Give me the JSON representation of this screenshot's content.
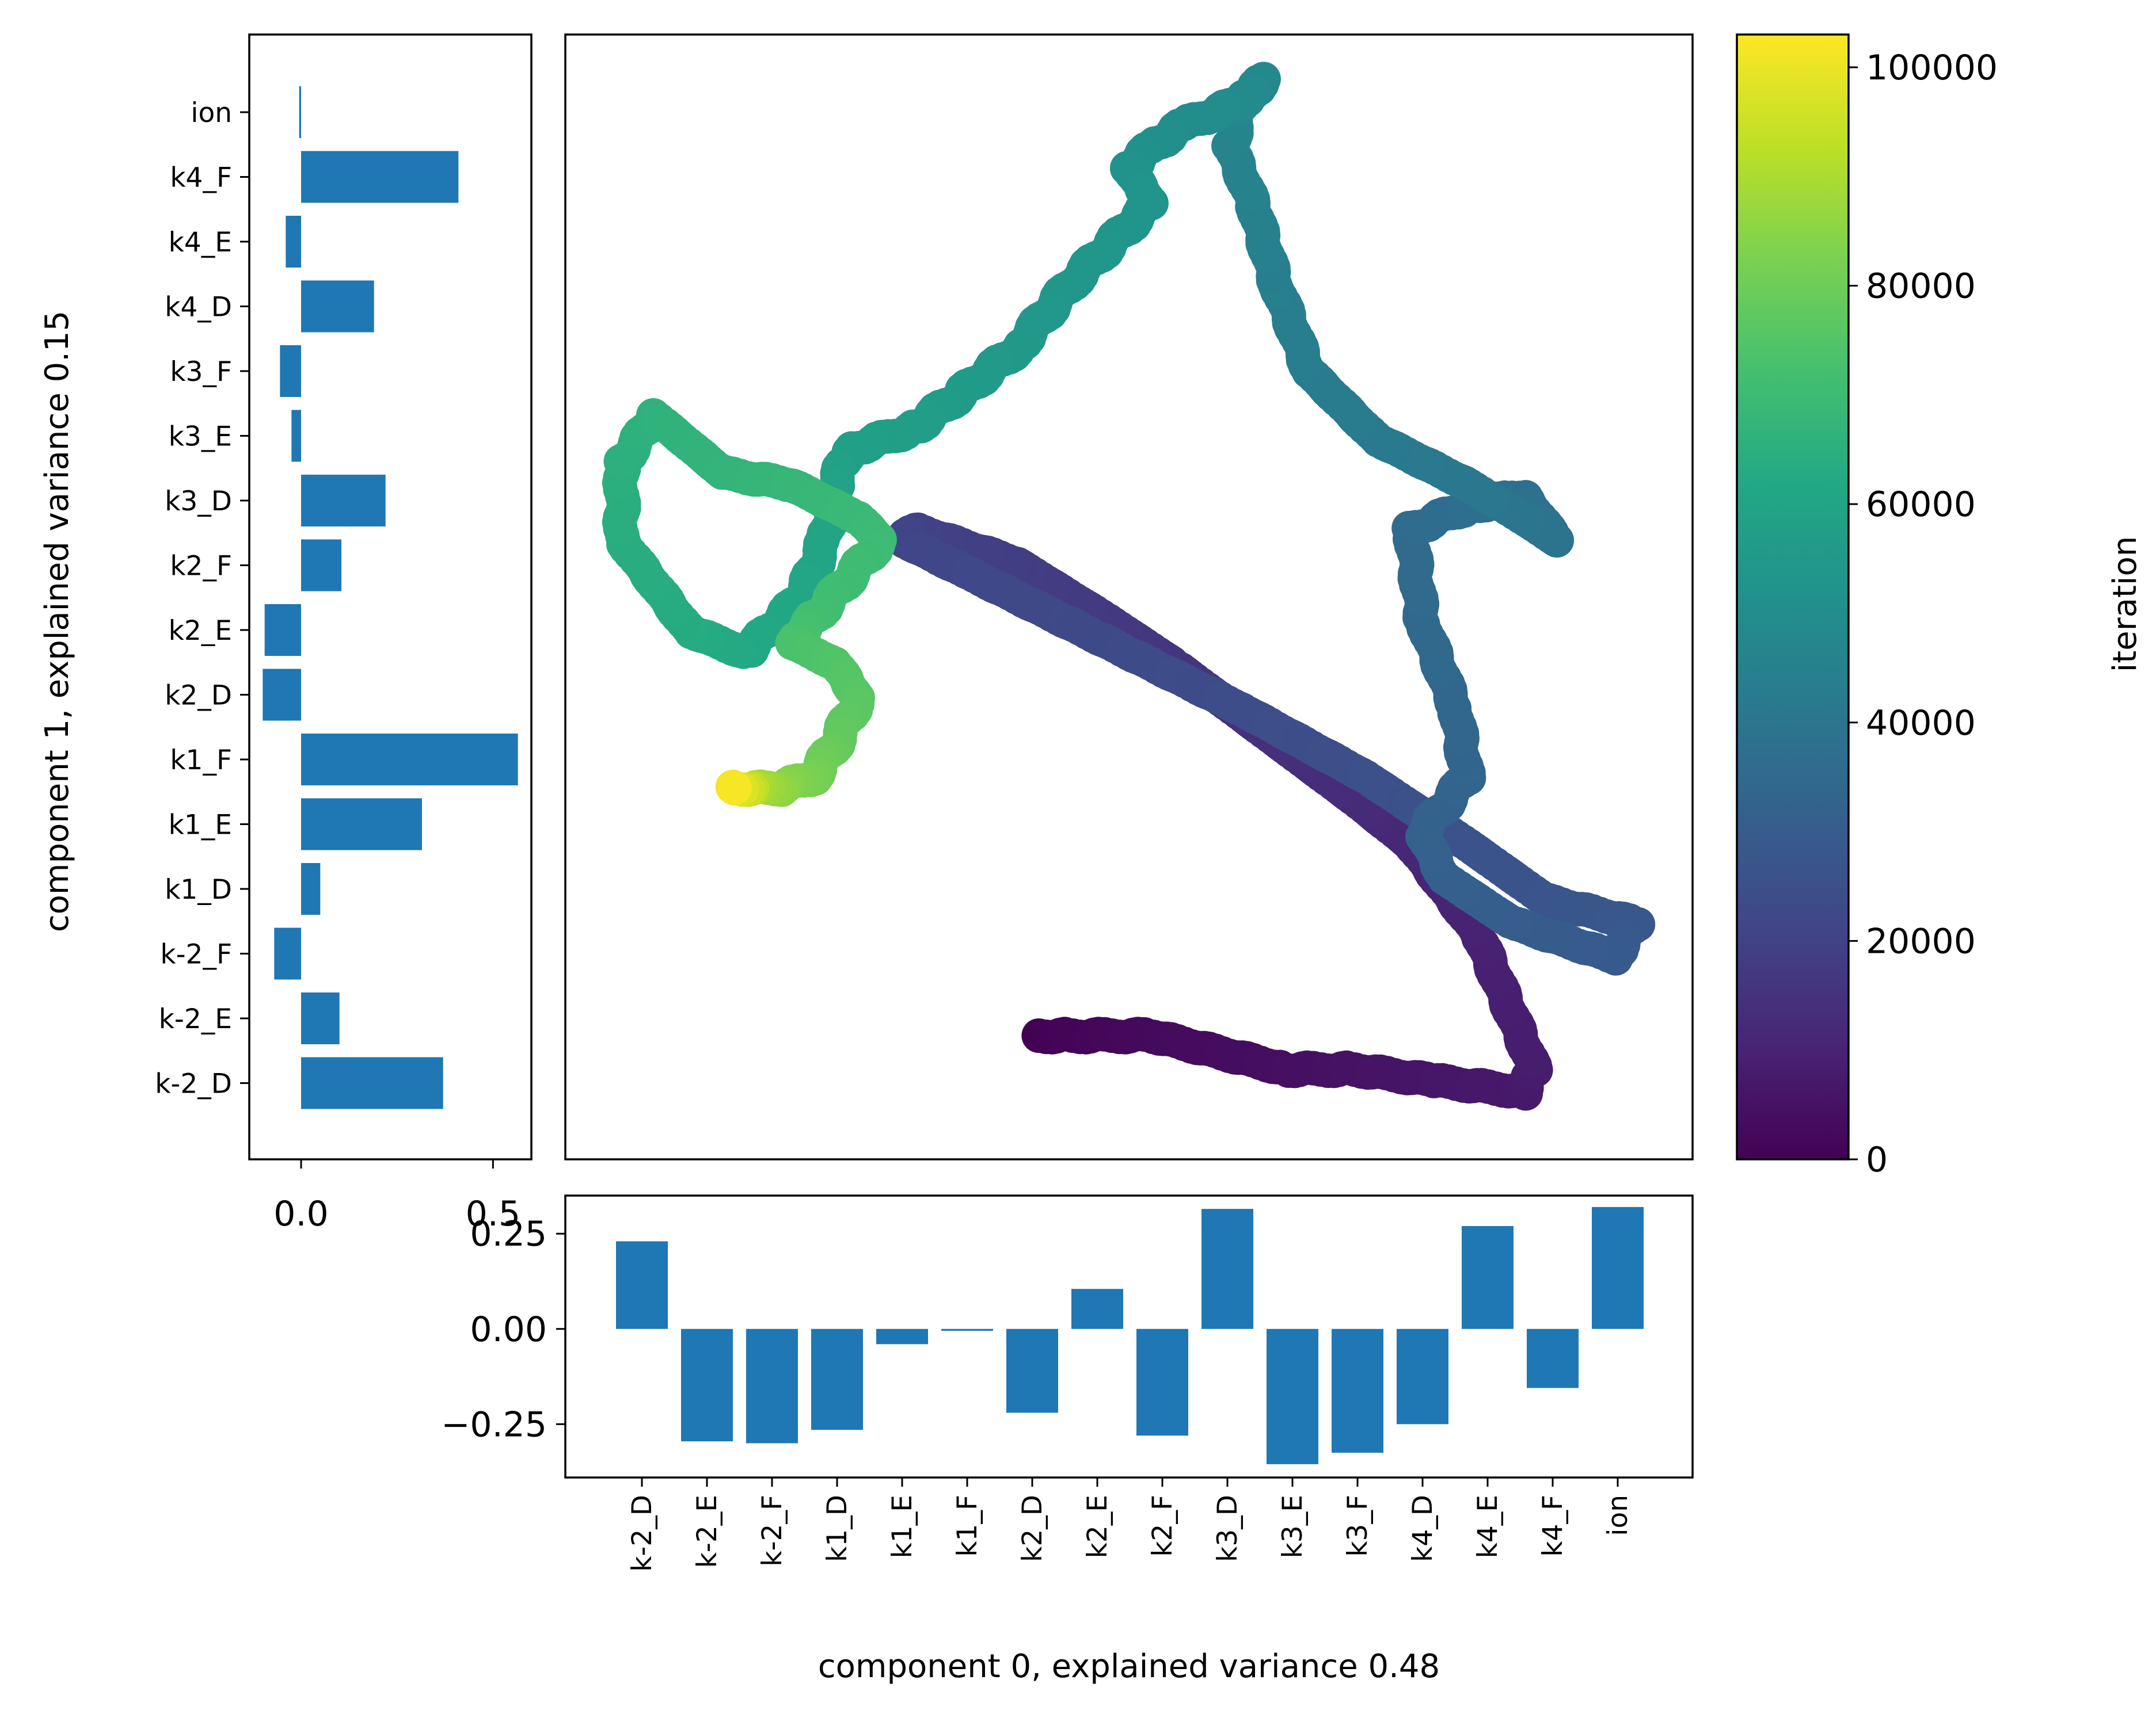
{
  "chart_data": [
    {
      "type": "scatter",
      "name": "pca-trajectory",
      "description_axes": "projection on components 0 and 1, ticks hidden",
      "colorbar": {
        "label": "iteration",
        "cmap": "viridis",
        "range": [
          0,
          103000
        ],
        "ticks": [
          0,
          20000,
          40000,
          60000,
          80000,
          100000
        ],
        "tick_labels": [
          "0",
          "20000",
          "40000",
          "60000",
          "80000",
          "100000"
        ]
      },
      "xlim": [
        0,
        1
      ],
      "ylim": [
        0,
        1
      ],
      "trajectory": [
        [
          0.42,
          0.11,
          0
        ],
        [
          0.45,
          0.11,
          1000
        ],
        [
          0.52,
          0.11,
          2500
        ],
        [
          0.64,
          0.08,
          4000
        ],
        [
          0.7,
          0.08,
          5000
        ],
        [
          0.77,
          0.07,
          6000
        ],
        [
          0.85,
          0.06,
          7000
        ],
        [
          0.86,
          0.08,
          8000
        ],
        [
          0.81,
          0.2,
          9500
        ],
        [
          0.75,
          0.28,
          11000
        ],
        [
          0.7,
          0.32,
          12500
        ],
        [
          0.62,
          0.38,
          14000
        ],
        [
          0.54,
          0.44,
          15500
        ],
        [
          0.48,
          0.48,
          17000
        ],
        [
          0.4,
          0.53,
          18500
        ],
        [
          0.31,
          0.56,
          20000
        ],
        [
          0.3,
          0.55,
          21000
        ],
        [
          0.36,
          0.52,
          22000
        ],
        [
          0.48,
          0.46,
          23000
        ],
        [
          0.6,
          0.4,
          24000
        ],
        [
          0.71,
          0.34,
          25000
        ],
        [
          0.8,
          0.28,
          26000
        ],
        [
          0.87,
          0.23,
          27000
        ],
        [
          0.95,
          0.21,
          28000
        ],
        [
          0.93,
          0.18,
          29000
        ],
        [
          0.84,
          0.21,
          30000
        ],
        [
          0.78,
          0.25,
          31000
        ],
        [
          0.76,
          0.29,
          32000
        ],
        [
          0.8,
          0.34,
          33000
        ],
        [
          0.79,
          0.4,
          34000
        ],
        [
          0.76,
          0.48,
          35000
        ],
        [
          0.75,
          0.56,
          36000
        ],
        [
          0.8,
          0.58,
          37000
        ],
        [
          0.85,
          0.59,
          38000
        ],
        [
          0.88,
          0.55,
          39000
        ],
        [
          0.85,
          0.57,
          40000
        ],
        [
          0.8,
          0.6,
          41000
        ],
        [
          0.72,
          0.64,
          42000
        ],
        [
          0.66,
          0.7,
          43000
        ],
        [
          0.63,
          0.78,
          44000
        ],
        [
          0.61,
          0.85,
          45000
        ],
        [
          0.59,
          0.9,
          46000
        ],
        [
          0.6,
          0.94,
          47000
        ],
        [
          0.62,
          0.96,
          48000
        ],
        [
          0.6,
          0.94,
          49000
        ],
        [
          0.55,
          0.92,
          50000
        ],
        [
          0.52,
          0.9,
          51000
        ],
        [
          0.5,
          0.88,
          52000
        ],
        [
          0.52,
          0.85,
          53000
        ],
        [
          0.45,
          0.78,
          54000
        ],
        [
          0.4,
          0.72,
          55000
        ],
        [
          0.35,
          0.68,
          56000
        ],
        [
          0.31,
          0.65,
          57000
        ],
        [
          0.25,
          0.63,
          58000
        ],
        [
          0.24,
          0.6,
          59000
        ],
        [
          0.23,
          0.55,
          60000
        ],
        [
          0.21,
          0.5,
          61000
        ],
        [
          0.16,
          0.45,
          62000
        ],
        [
          0.11,
          0.47,
          63000
        ],
        [
          0.05,
          0.55,
          64000
        ],
        [
          0.05,
          0.62,
          65000
        ],
        [
          0.08,
          0.66,
          66000
        ],
        [
          0.14,
          0.61,
          67000
        ],
        [
          0.2,
          0.6,
          68000
        ],
        [
          0.26,
          0.57,
          69000
        ],
        [
          0.28,
          0.55,
          70000
        ],
        [
          0.22,
          0.48,
          71500
        ],
        [
          0.2,
          0.46,
          73000
        ],
        [
          0.24,
          0.44,
          74500
        ],
        [
          0.26,
          0.41,
          76000
        ],
        [
          0.24,
          0.37,
          78000
        ],
        [
          0.22,
          0.34,
          81000
        ],
        [
          0.19,
          0.33,
          85000
        ],
        [
          0.17,
          0.33,
          90000
        ],
        [
          0.16,
          0.33,
          95000
        ],
        [
          0.15,
          0.33,
          100000
        ],
        [
          0.15,
          0.33,
          102000
        ]
      ]
    },
    {
      "type": "bar",
      "orientation": "horizontal",
      "name": "component-1-loadings",
      "ylabel": "component 1, explained variance 0.15",
      "categories": [
        "ion",
        "k4_F",
        "k4_E",
        "k4_D",
        "k3_F",
        "k3_E",
        "k3_D",
        "k2_F",
        "k2_E",
        "k2_D",
        "k1_F",
        "k1_E",
        "k1_D",
        "k-2_F",
        "k-2_E",
        "k-2_D"
      ],
      "values": [
        -0.005,
        0.41,
        -0.04,
        0.19,
        -0.055,
        -0.025,
        0.22,
        0.105,
        -0.095,
        -0.1,
        0.565,
        0.315,
        0.05,
        -0.07,
        0.1,
        0.37
      ],
      "xlim": [
        -0.135,
        0.6
      ],
      "xticks": [
        0.0,
        0.5
      ],
      "xtick_labels": [
        "0.0",
        "0.5"
      ]
    },
    {
      "type": "bar",
      "orientation": "vertical",
      "name": "component-0-loadings",
      "xlabel": "component 0, explained variance 0.48",
      "categories": [
        "k-2_D",
        "k-2_E",
        "k-2_F",
        "k1_D",
        "k1_E",
        "k1_F",
        "k2_D",
        "k2_E",
        "k2_F",
        "k3_D",
        "k3_E",
        "k3_F",
        "k4_D",
        "k4_E",
        "k4_F",
        "ion"
      ],
      "values": [
        0.23,
        -0.295,
        -0.3,
        -0.265,
        -0.04,
        -0.005,
        -0.22,
        0.105,
        -0.28,
        0.315,
        -0.355,
        -0.325,
        -0.25,
        0.27,
        -0.155,
        0.32
      ],
      "ylim": [
        -0.39,
        0.35
      ],
      "yticks": [
        0.25,
        0.0,
        -0.25
      ],
      "ytick_labels": [
        "0.25",
        "0.00",
        "−0.25"
      ]
    }
  ]
}
